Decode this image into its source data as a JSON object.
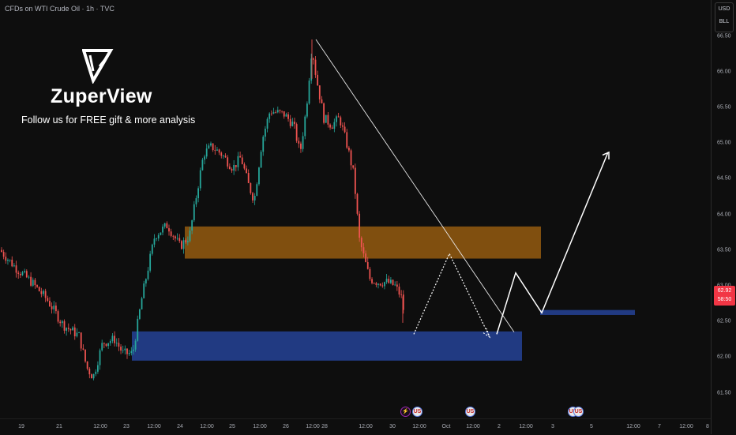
{
  "header": {
    "title": "CFDs on WTI Crude Oil · 1h · TVC"
  },
  "brand": {
    "logo_icon": "zuperview-logo-icon",
    "name": "ZuperView",
    "tagline": "Follow us for FREE gift & more analysis"
  },
  "price_axis": {
    "unit_currency": "USD",
    "unit_volume": "BLL",
    "ticks": [
      "66.50",
      "66.00",
      "65.50",
      "65.00",
      "64.50",
      "64.00",
      "63.50",
      "63.00",
      "62.50",
      "62.00",
      "61.50"
    ],
    "current_price": "62.92",
    "countdown": "58:50"
  },
  "time_axis": {
    "ticks": [
      "19",
      "21",
      "12:00",
      "23",
      "12:00",
      "24",
      "12:00",
      "25",
      "12:00",
      "26",
      "12:00",
      "28",
      "12:00",
      "30",
      "12:00",
      "Oct",
      "12:00",
      "2",
      "12:00",
      "3",
      "5",
      "12:00",
      "7",
      "12:00",
      "8"
    ]
  },
  "events": [
    {
      "icon": "flash-icon",
      "label": "⚡"
    },
    {
      "icon": "us-flag-icon",
      "label": "🇺🇸"
    },
    {
      "icon": "us-flag-icon",
      "label": "🇺🇸"
    },
    {
      "icon": "us-flag-icon",
      "label": "🇺🇸"
    },
    {
      "icon": "us-flag-icon",
      "label": "🇺🇸"
    }
  ],
  "colors": {
    "background": "#0e0e0e",
    "up_candle": "#26a69a",
    "down_candle": "#ef5350",
    "supply_zone": "#a0620f",
    "demand_zone": "#233f8f",
    "price_badge": "#f23645"
  },
  "chart_data": {
    "type": "candlestick",
    "symbol": "WTI Crude Oil",
    "timeframe": "1h",
    "ylim": [
      61.35,
      66.75
    ],
    "ohlc": [],
    "zones": [
      {
        "kind": "supply",
        "y_top": 63.83,
        "y_bottom": 63.38
      },
      {
        "kind": "demand",
        "y_top": 62.36,
        "y_bottom": 61.95
      },
      {
        "kind": "target-demand",
        "y_top": 62.66,
        "y_bottom": 62.59
      }
    ],
    "trendline": {
      "from_price": 66.45,
      "to_price": 62.35
    },
    "projection": [
      62.32,
      63.18,
      62.62,
      64.87
    ],
    "projection_dotted": [
      62.32,
      63.45,
      62.28
    ]
  }
}
